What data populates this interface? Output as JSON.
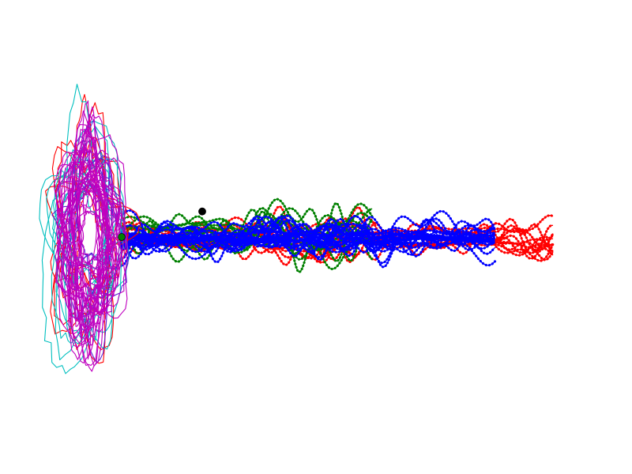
{
  "chart_data": {
    "type": "line",
    "title": "",
    "xlabel": "",
    "ylabel": "",
    "axes_visible": false,
    "grid": false,
    "legend": "none",
    "xlim": [
      0,
      100
    ],
    "ylim": [
      -60,
      60
    ],
    "series": [
      {
        "key": "blob-red",
        "style": "loops",
        "color": "#ff0000",
        "curves": 8,
        "center": [
          2,
          0
        ],
        "radius": [
          7,
          38
        ],
        "jitter": 0.35
      },
      {
        "key": "blob-cyan",
        "style": "loops",
        "color": "#00bfbf",
        "curves": 10,
        "center": [
          1.5,
          1
        ],
        "radius": [
          7,
          37
        ],
        "jitter": 0.3
      },
      {
        "key": "blob-purple",
        "style": "loops",
        "color": "#5a1fd6",
        "curves": 6,
        "center": [
          2.5,
          2
        ],
        "radius": [
          6,
          33
        ],
        "jitter": 0.3
      },
      {
        "key": "blob-magenta",
        "style": "loops",
        "color": "#bf00bf",
        "curves": 34,
        "center": [
          2,
          0
        ],
        "radius": [
          6,
          34
        ],
        "jitter": 0.28
      },
      {
        "key": "wave-red",
        "style": "dotted-band",
        "color": "#ff0000",
        "curves": 12,
        "x": [
          9,
          100
        ],
        "amplitude": 9,
        "spread": 0.6
      },
      {
        "key": "wave-green",
        "style": "dotted-band",
        "color": "#008000",
        "curves": 10,
        "x": [
          9,
          62
        ],
        "amplitude": 12,
        "spread": 0.7
      },
      {
        "key": "wave-blue",
        "style": "dotted-band",
        "color": "#0000ff",
        "curves": 22,
        "x": [
          9,
          88
        ],
        "amplitude": 8,
        "spread": 0.5
      }
    ],
    "markers": [
      {
        "key": "start-marker",
        "x": 9,
        "y": 0,
        "color": "#008000"
      },
      {
        "key": "peak-marker",
        "x": 26,
        "y": 8.5,
        "color": "#000000"
      }
    ]
  }
}
